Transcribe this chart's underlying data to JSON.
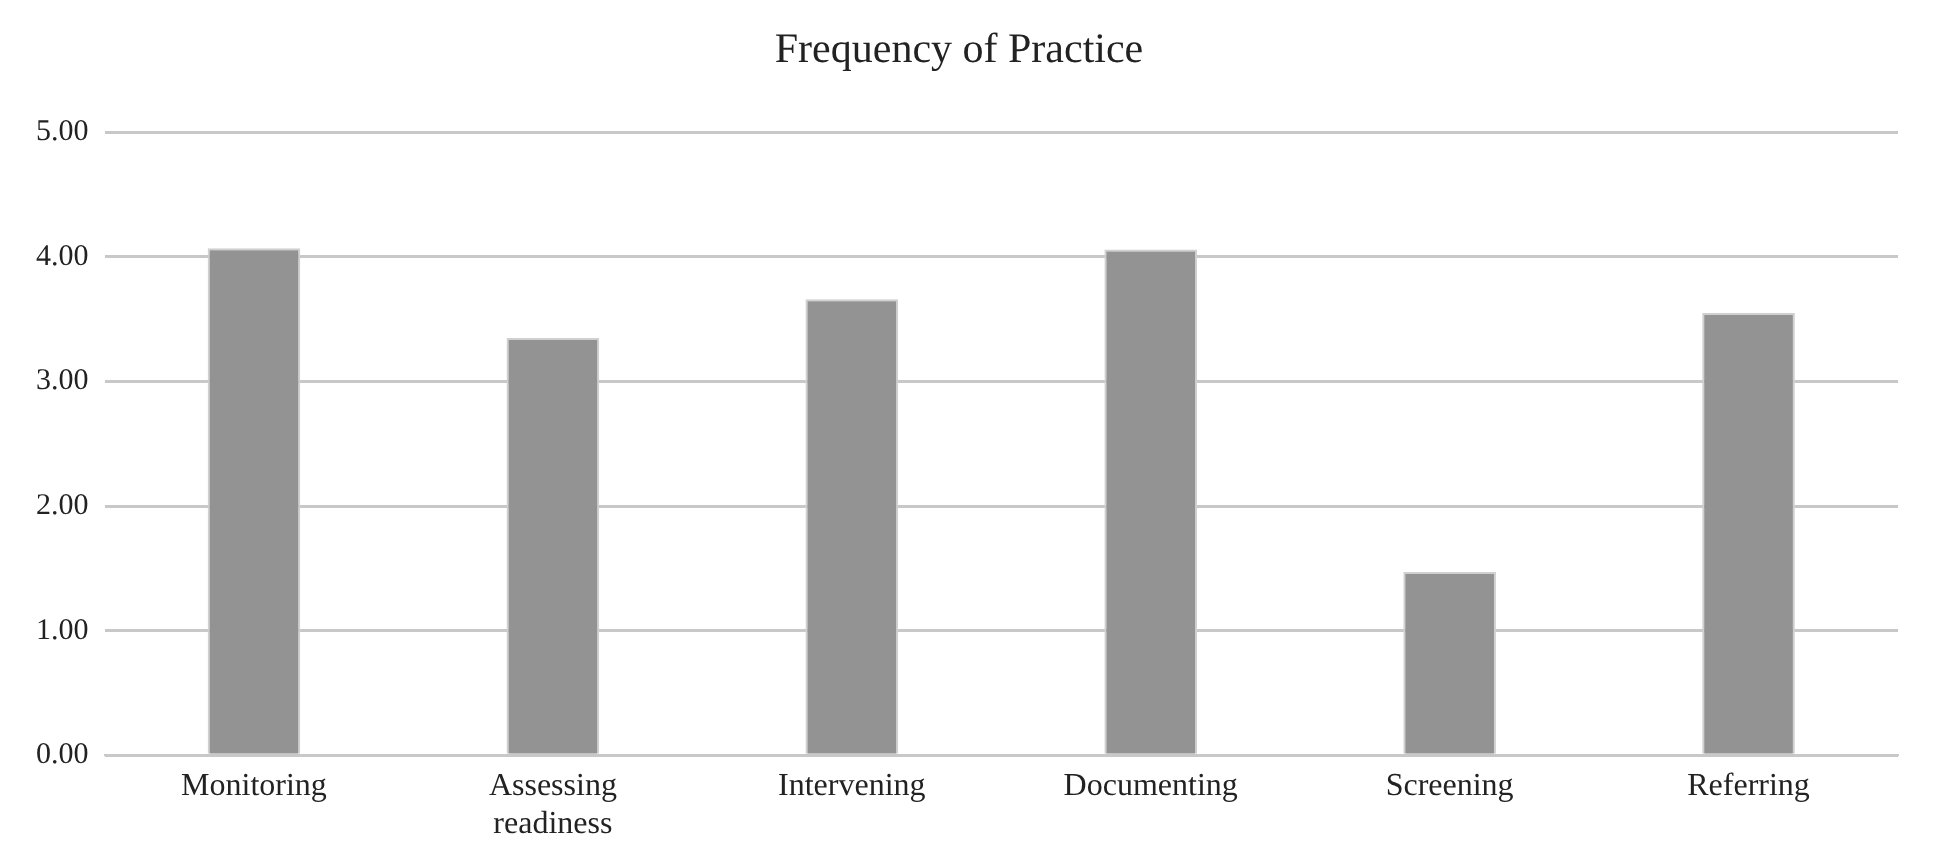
{
  "chart_data": {
    "type": "bar",
    "title": "Frequency of Practice",
    "categories": [
      "Monitoring",
      "Assessing readiness",
      "Intervening",
      "Documenting",
      "Screening",
      "Referring"
    ],
    "values": [
      4.07,
      3.35,
      3.66,
      4.06,
      1.47,
      3.55
    ],
    "color": "#939393",
    "ylim": [
      0,
      5
    ],
    "yticks": [
      {
        "value": 0,
        "label": "0.00"
      },
      {
        "value": 1,
        "label": "1.00"
      },
      {
        "value": 2,
        "label": "2.00"
      },
      {
        "value": 3,
        "label": "3.00"
      },
      {
        "value": 4,
        "label": "4.00"
      },
      {
        "value": 5,
        "label": "5.00"
      }
    ],
    "grid": "y",
    "legend": false
  }
}
